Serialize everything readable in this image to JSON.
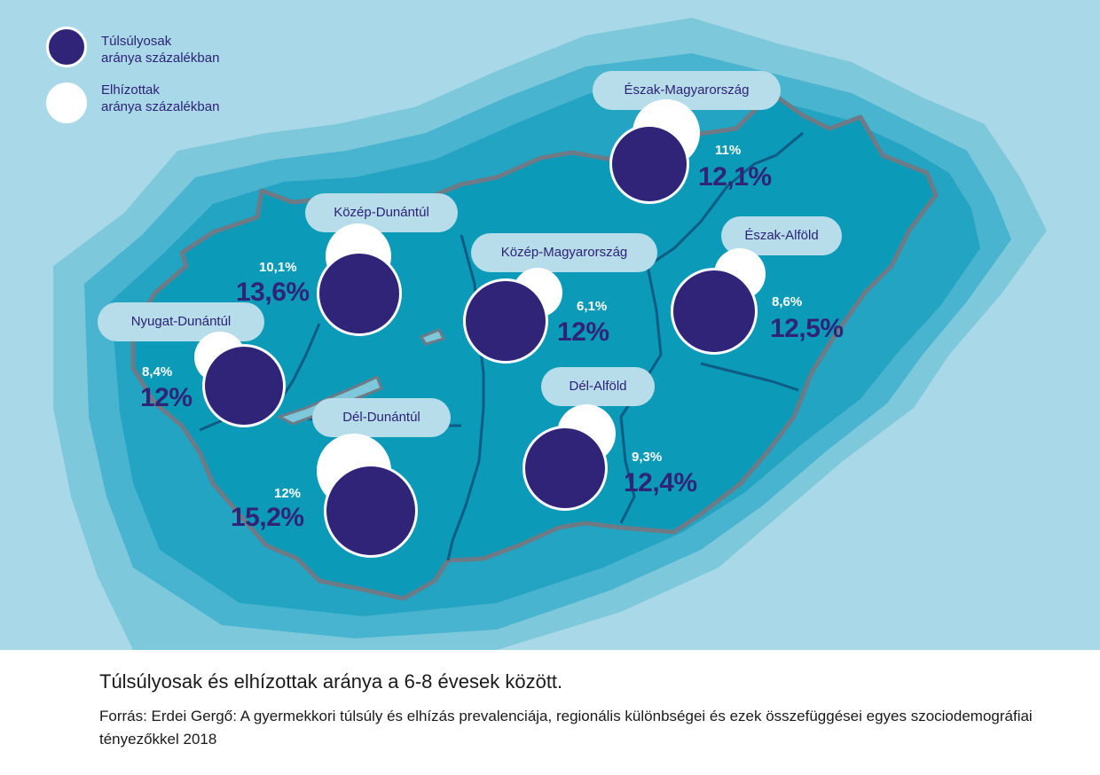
{
  "legend": {
    "overweight": "Túlsúlyosak\naránya százalékban",
    "obese": "Elhízottak\naránya százalékban"
  },
  "colors": {
    "sea": "#a9d9e8",
    "glow_outer": "#7ec8db",
    "glow_mid": "#49b4cf",
    "glow_inner": "#23a4c2",
    "land": "#0b9ab8",
    "border": "#6e7b86",
    "region_line": "#0e5c84",
    "overweight_circle": "#302478",
    "obese_circle": "#ffffff",
    "label_pill": "#b6dde9"
  },
  "regions": [
    {
      "name": "Észak-Magyarország",
      "overweight": "12,1%",
      "obese": "11%",
      "overweight_value": 12.1,
      "obese_value": 11.0
    },
    {
      "name": "Közép-Dunántúl",
      "overweight": "13,6%",
      "obese": "10,1%",
      "overweight_value": 13.6,
      "obese_value": 10.1
    },
    {
      "name": "Közép-Magyarország",
      "overweight": "12%",
      "obese": "6,1%",
      "overweight_value": 12.0,
      "obese_value": 6.1
    },
    {
      "name": "Észak-Alföld",
      "overweight": "12,5%",
      "obese": "8,6%",
      "overweight_value": 12.5,
      "obese_value": 8.6
    },
    {
      "name": "Nyugat-Dunántúl",
      "overweight": "12%",
      "obese": "8,4%",
      "overweight_value": 12.0,
      "obese_value": 8.4
    },
    {
      "name": "Dél-Alföld",
      "overweight": "12,4%",
      "obese": "9,3%",
      "overweight_value": 12.4,
      "obese_value": 9.3
    },
    {
      "name": "Dél-Dunántúl",
      "overweight": "15,2%",
      "obese": "12%",
      "overweight_value": 15.2,
      "obese_value": 12.0
    }
  ],
  "caption": {
    "title": "Túlsúlyosak és elhízottak aránya a 6-8 évesek között.",
    "source": "Forrás: Erdei Gergő: A gyermekkori túlsúly és elhízás prevalenciája, regionális különbségei és ezek összefüggései egyes szociodemográfiai tényezőkkel 2018"
  }
}
